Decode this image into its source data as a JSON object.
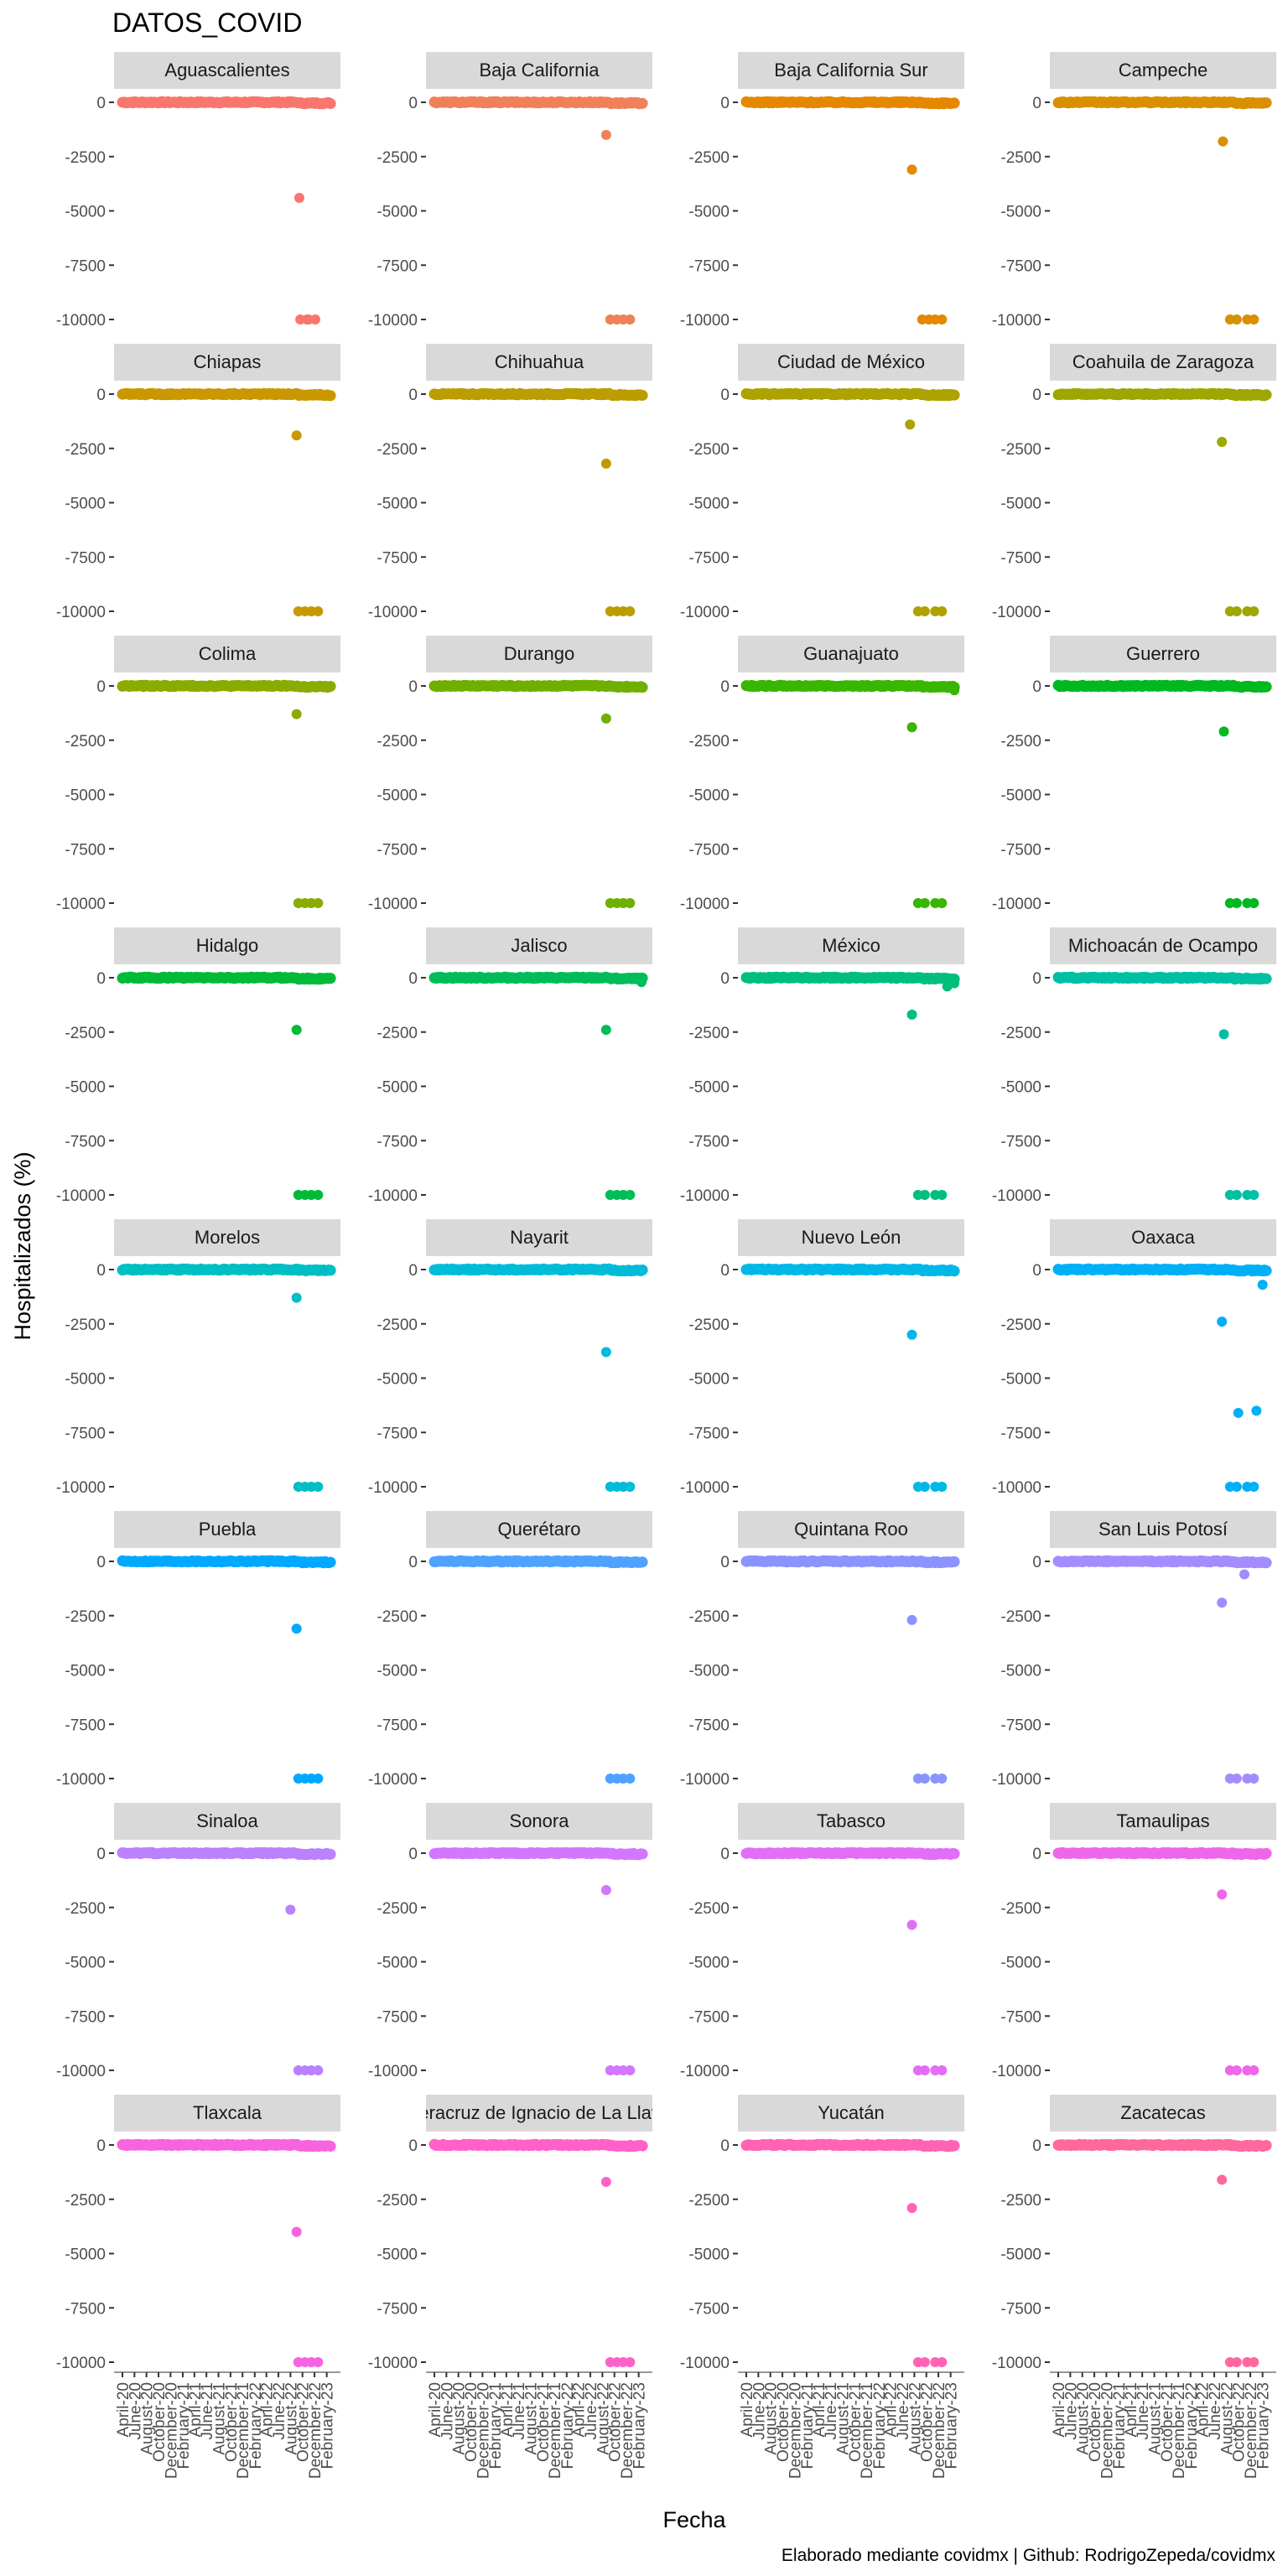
{
  "chart_data": {
    "type": "scatter",
    "title": "DATOS_COVID",
    "xlabel": "Fecha",
    "ylabel": "Hospitalizados (%)",
    "caption": "Elaborado mediante covidmx | Github: RodrigoZepeda/covidmx",
    "x_range": [
      "2020-04-01",
      "2023-02-28"
    ],
    "ylim": [
      -10000,
      0
    ],
    "y_ticks": [
      "0",
      "-2500",
      "-5000",
      "-7500",
      "-10000"
    ],
    "y_tick_values": [
      0,
      -2500,
      -5000,
      -7500,
      -10000
    ],
    "x_ticks": [
      "April-20",
      "June-20",
      "August-20",
      "October-20",
      "December-20",
      "February-21",
      "April-21",
      "June-21",
      "August-21",
      "October-21",
      "December-21",
      "February-22",
      "April-22",
      "June-22",
      "August-22",
      "October-22",
      "December-22",
      "February-23"
    ],
    "x_tick_dates": [
      "2020-04-01",
      "2020-06-01",
      "2020-08-01",
      "2020-10-01",
      "2020-12-01",
      "2021-02-01",
      "2021-04-01",
      "2021-06-01",
      "2021-08-01",
      "2021-10-01",
      "2021-12-01",
      "2022-02-01",
      "2022-04-01",
      "2022-06-01",
      "2022-08-01",
      "2022-10-01",
      "2022-12-01",
      "2023-02-01"
    ],
    "grid": false,
    "legend": "none",
    "facets": [
      {
        "name": "Aguascalientes",
        "color": "#F8766D",
        "outliers": [
          {
            "x": "2022-09-15",
            "y": -4400
          },
          {
            "x": "2022-09-20",
            "y": -10000
          },
          {
            "x": "2022-11-01",
            "y": -10000
          }
        ]
      },
      {
        "name": "Baja California",
        "color": "#F0805A",
        "outliers": [
          {
            "x": "2022-08-20",
            "y": -1500
          },
          {
            "x": "2022-09-10",
            "y": -10000
          },
          {
            "x": "2022-11-15",
            "y": -10000
          }
        ]
      },
      {
        "name": "Baja California Sur",
        "color": "#E58700",
        "outliers": [
          {
            "x": "2022-07-20",
            "y": -3100
          },
          {
            "x": "2022-09-10",
            "y": -10000
          },
          {
            "x": "2022-11-15",
            "y": -10000
          }
        ]
      },
      {
        "name": "Campeche",
        "color": "#D89000",
        "outliers": [
          {
            "x": "2022-07-15",
            "y": -1800
          },
          {
            "x": "2022-08-20",
            "y": -10000
          },
          {
            "x": "2022-11-15",
            "y": -10000
          }
        ]
      },
      {
        "name": "Chiapas",
        "color": "#C99800",
        "outliers": [
          {
            "x": "2022-09-01",
            "y": -1900
          },
          {
            "x": "2022-09-10",
            "y": -10000
          },
          {
            "x": "2022-11-15",
            "y": -10000
          }
        ]
      },
      {
        "name": "Chihuahua",
        "color": "#BB9D00",
        "outliers": [
          {
            "x": "2022-08-20",
            "y": -3200
          },
          {
            "x": "2022-09-10",
            "y": -10000
          },
          {
            "x": "2022-11-15",
            "y": -10000
          }
        ]
      },
      {
        "name": "Ciudad de México",
        "color": "#AEA200",
        "outliers": [
          {
            "x": "2022-07-10",
            "y": -1400
          },
          {
            "x": "2022-08-20",
            "y": -10000
          },
          {
            "x": "2022-11-15",
            "y": -10000
          }
        ]
      },
      {
        "name": "Coahuila de Zaragoza",
        "color": "#9DA700",
        "outliers": [
          {
            "x": "2022-07-10",
            "y": -2200
          },
          {
            "x": "2022-08-20",
            "y": -10000
          },
          {
            "x": "2022-11-15",
            "y": -10000
          }
        ]
      },
      {
        "name": "Colima",
        "color": "#8AAB00",
        "outliers": [
          {
            "x": "2022-09-01",
            "y": -1300
          },
          {
            "x": "2022-09-10",
            "y": -10000
          },
          {
            "x": "2022-11-15",
            "y": -10000
          }
        ]
      },
      {
        "name": "Durango",
        "color": "#6FAF00",
        "outliers": [
          {
            "x": "2022-08-20",
            "y": -1500
          },
          {
            "x": "2022-09-10",
            "y": -10000
          },
          {
            "x": "2022-11-15",
            "y": -10000
          }
        ]
      },
      {
        "name": "Guanajuato",
        "color": "#39B600",
        "outliers": [
          {
            "x": "2022-07-20",
            "y": -1900
          },
          {
            "x": "2022-08-20",
            "y": -10000
          },
          {
            "x": "2022-11-15",
            "y": -10000
          },
          {
            "x": "2023-02-20",
            "y": -200
          }
        ]
      },
      {
        "name": "Guerrero",
        "color": "#00B81F",
        "outliers": [
          {
            "x": "2022-07-20",
            "y": -2100
          },
          {
            "x": "2022-08-20",
            "y": -10000
          },
          {
            "x": "2022-11-15",
            "y": -10000
          }
        ]
      },
      {
        "name": "Hidalgo",
        "color": "#00BA38",
        "outliers": [
          {
            "x": "2022-09-01",
            "y": -2400
          },
          {
            "x": "2022-09-10",
            "y": -10000
          },
          {
            "x": "2022-11-15",
            "y": -10000
          }
        ]
      },
      {
        "name": "Jalisco",
        "color": "#00BC59",
        "outliers": [
          {
            "x": "2022-08-20",
            "y": -2400
          },
          {
            "x": "2022-09-10",
            "y": -10000
          },
          {
            "x": "2022-11-15",
            "y": -10000
          },
          {
            "x": "2023-02-15",
            "y": -200
          }
        ]
      },
      {
        "name": "México",
        "color": "#00BF7D",
        "outliers": [
          {
            "x": "2022-07-20",
            "y": -1700
          },
          {
            "x": "2022-08-20",
            "y": -10000
          },
          {
            "x": "2022-11-15",
            "y": -10000
          },
          {
            "x": "2023-01-15",
            "y": -400
          },
          {
            "x": "2023-02-20",
            "y": -250
          }
        ]
      },
      {
        "name": "Michoacán de Ocampo",
        "color": "#00C0A3",
        "outliers": [
          {
            "x": "2022-07-20",
            "y": -2600
          },
          {
            "x": "2022-08-20",
            "y": -10000
          },
          {
            "x": "2022-11-15",
            "y": -10000
          }
        ]
      },
      {
        "name": "Morelos",
        "color": "#00BFC4",
        "outliers": [
          {
            "x": "2022-09-01",
            "y": -1300
          },
          {
            "x": "2022-09-10",
            "y": -10000
          },
          {
            "x": "2022-11-15",
            "y": -10000
          }
        ]
      },
      {
        "name": "Nayarit",
        "color": "#00BCD8",
        "outliers": [
          {
            "x": "2022-08-20",
            "y": -3800
          },
          {
            "x": "2022-09-10",
            "y": -10000
          },
          {
            "x": "2022-11-15",
            "y": -10000
          }
        ]
      },
      {
        "name": "Nuevo León",
        "color": "#00B8E7",
        "outliers": [
          {
            "x": "2022-07-20",
            "y": -3000
          },
          {
            "x": "2022-08-20",
            "y": -10000
          },
          {
            "x": "2022-11-15",
            "y": -10000
          }
        ]
      },
      {
        "name": "Oaxaca",
        "color": "#00B0F6",
        "outliers": [
          {
            "x": "2022-07-10",
            "y": -2400
          },
          {
            "x": "2022-08-20",
            "y": -10000
          },
          {
            "x": "2022-11-15",
            "y": -10000
          },
          {
            "x": "2022-10-01",
            "y": -6600
          },
          {
            "x": "2023-01-01",
            "y": -6500
          },
          {
            "x": "2023-02-01",
            "y": -700
          }
        ]
      },
      {
        "name": "Puebla",
        "color": "#00A8FF",
        "outliers": [
          {
            "x": "2022-09-01",
            "y": -3100
          },
          {
            "x": "2022-09-10",
            "y": -10000
          },
          {
            "x": "2022-11-15",
            "y": -10000
          }
        ]
      },
      {
        "name": "Querétaro",
        "color": "#4FA2FF",
        "outliers": [
          {
            "x": "2022-09-10",
            "y": -10000
          },
          {
            "x": "2022-11-15",
            "y": -10000
          }
        ]
      },
      {
        "name": "Quintana Roo",
        "color": "#8B93FF",
        "outliers": [
          {
            "x": "2022-07-20",
            "y": -2700
          },
          {
            "x": "2022-08-20",
            "y": -10000
          },
          {
            "x": "2022-11-15",
            "y": -10000
          }
        ]
      },
      {
        "name": "San Luis Potosí",
        "color": "#A48CFF",
        "outliers": [
          {
            "x": "2022-07-10",
            "y": -1900
          },
          {
            "x": "2022-08-20",
            "y": -10000
          },
          {
            "x": "2022-11-15",
            "y": -10000
          },
          {
            "x": "2022-11-01",
            "y": -600
          }
        ]
      },
      {
        "name": "Sinaloa",
        "color": "#BB81FF",
        "outliers": [
          {
            "x": "2022-08-01",
            "y": -2600
          },
          {
            "x": "2022-09-10",
            "y": -10000
          },
          {
            "x": "2022-11-15",
            "y": -10000
          }
        ]
      },
      {
        "name": "Sonora",
        "color": "#D277FF",
        "outliers": [
          {
            "x": "2022-08-20",
            "y": -1700
          },
          {
            "x": "2022-09-10",
            "y": -10000
          },
          {
            "x": "2022-11-15",
            "y": -10000
          }
        ]
      },
      {
        "name": "Tabasco",
        "color": "#E26EF7",
        "outliers": [
          {
            "x": "2022-07-20",
            "y": -3300
          },
          {
            "x": "2022-08-20",
            "y": -10000
          },
          {
            "x": "2022-11-15",
            "y": -10000
          }
        ]
      },
      {
        "name": "Tamaulipas",
        "color": "#EE67EB",
        "outliers": [
          {
            "x": "2022-07-10",
            "y": -1900
          },
          {
            "x": "2022-08-20",
            "y": -10000
          },
          {
            "x": "2022-11-15",
            "y": -10000
          }
        ]
      },
      {
        "name": "Tlaxcala",
        "color": "#F863DF",
        "outliers": [
          {
            "x": "2022-09-01",
            "y": -4000
          },
          {
            "x": "2022-09-10",
            "y": -10000
          },
          {
            "x": "2022-11-15",
            "y": -10000
          }
        ]
      },
      {
        "name": "Veracruz de Ignacio de La Llave",
        "color": "#FF61C9",
        "outliers": [
          {
            "x": "2022-08-20",
            "y": -1700
          },
          {
            "x": "2022-09-10",
            "y": -10000
          },
          {
            "x": "2022-11-15",
            "y": -10000
          }
        ]
      },
      {
        "name": "Yucatán",
        "color": "#FF63B6",
        "outliers": [
          {
            "x": "2022-07-20",
            "y": -2900
          },
          {
            "x": "2022-08-20",
            "y": -10000
          },
          {
            "x": "2022-11-15",
            "y": -10000
          }
        ]
      },
      {
        "name": "Zacatecas",
        "color": "#FF689F",
        "outliers": [
          {
            "x": "2022-07-10",
            "y": -1600
          },
          {
            "x": "2022-08-20",
            "y": -10000
          },
          {
            "x": "2022-11-15",
            "y": -10000
          }
        ]
      }
    ]
  }
}
